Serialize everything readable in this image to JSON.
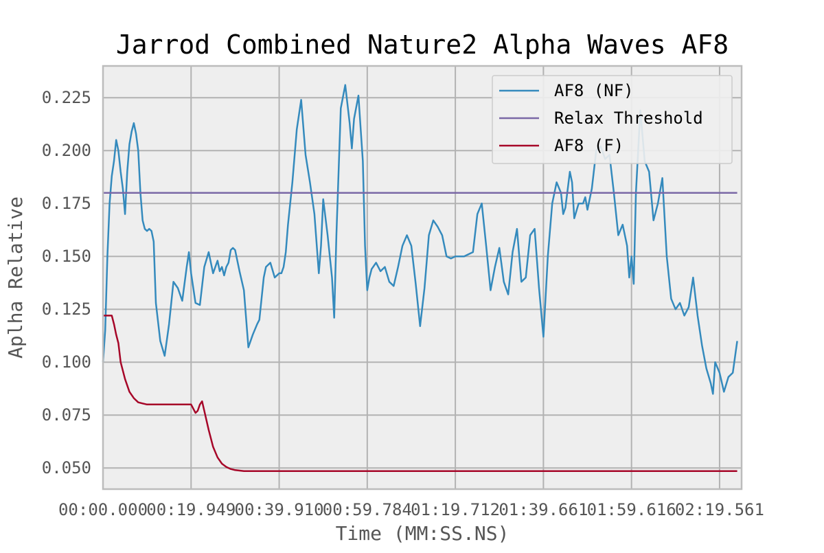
{
  "chart_data": {
    "type": "line",
    "title": "Jarrod Combined Nature2 Alpha Waves AF8",
    "xlabel": "Time (MM:SS.NS)",
    "ylabel": "Aplha Relative",
    "xlim": [
      0,
      145
    ],
    "ylim": [
      0.04,
      0.24
    ],
    "grid": true,
    "legend_position": "top-right",
    "x_ticks": [
      {
        "value": 0,
        "label": "00:00.000"
      },
      {
        "value": 20,
        "label": "00:19.949"
      },
      {
        "value": 40,
        "label": "00:39.910"
      },
      {
        "value": 60,
        "label": "00:59.784"
      },
      {
        "value": 80,
        "label": "01:19.712"
      },
      {
        "value": 100,
        "label": "01:39.661"
      },
      {
        "value": 120,
        "label": "01:59.616"
      },
      {
        "value": 140,
        "label": "02:19.561"
      }
    ],
    "y_ticks": [
      {
        "value": 0.05,
        "label": "0.050"
      },
      {
        "value": 0.075,
        "label": "0.075"
      },
      {
        "value": 0.1,
        "label": "0.100"
      },
      {
        "value": 0.125,
        "label": "0.125"
      },
      {
        "value": 0.15,
        "label": "0.150"
      },
      {
        "value": 0.175,
        "label": "0.175"
      },
      {
        "value": 0.2,
        "label": "0.200"
      },
      {
        "value": 0.225,
        "label": "0.225"
      }
    ],
    "series": [
      {
        "name": "AF8 (NF)",
        "color": "#348abd",
        "x": [
          0,
          0.5,
          1,
          1.5,
          2,
          2.5,
          3,
          3.5,
          4,
          4.5,
          5,
          5.5,
          6,
          6.5,
          7,
          7.5,
          8,
          8.5,
          9,
          9.5,
          10,
          10.5,
          11,
          11.5,
          12,
          13,
          14,
          15,
          16,
          17,
          18,
          19,
          19.5,
          20,
          20.5,
          21,
          22,
          23,
          24,
          25,
          26,
          26.5,
          27,
          27.5,
          28,
          28.5,
          29,
          29.5,
          30,
          30.5,
          31,
          32,
          33,
          34,
          35,
          35.5,
          36,
          36.5,
          37,
          38,
          39,
          40,
          40.5,
          41,
          41.5,
          42,
          43,
          44,
          45,
          46,
          47,
          48,
          49,
          49.5,
          50,
          51,
          52,
          52.5,
          53,
          54,
          55,
          56,
          56.5,
          57,
          58,
          59,
          59.5,
          60,
          60.5,
          61,
          62,
          63,
          64,
          65,
          66,
          67,
          68,
          69,
          70,
          71,
          72,
          73,
          74,
          75,
          76,
          77,
          78,
          79,
          80,
          81,
          82,
          83,
          84,
          85,
          86,
          87,
          88,
          89,
          90,
          91,
          92,
          93,
          94,
          95,
          96,
          97,
          98,
          99,
          100,
          101,
          102,
          103,
          104,
          104.5,
          105,
          106,
          106.5,
          107,
          108,
          109,
          109.5,
          110,
          111,
          112,
          113,
          114,
          115,
          116,
          117,
          118,
          119,
          119.5,
          120,
          120.5,
          121,
          122,
          123,
          124,
          125,
          126,
          127,
          128,
          129,
          130,
          131,
          132,
          133,
          134,
          135,
          136,
          137,
          138,
          138.5,
          139,
          140,
          141,
          142,
          143,
          144
        ],
        "values": [
          0.1,
          0.115,
          0.15,
          0.175,
          0.188,
          0.195,
          0.205,
          0.2,
          0.19,
          0.182,
          0.17,
          0.19,
          0.203,
          0.209,
          0.213,
          0.208,
          0.2,
          0.18,
          0.167,
          0.163,
          0.162,
          0.163,
          0.162,
          0.157,
          0.128,
          0.11,
          0.103,
          0.118,
          0.138,
          0.135,
          0.129,
          0.145,
          0.152,
          0.142,
          0.135,
          0.128,
          0.127,
          0.145,
          0.152,
          0.142,
          0.148,
          0.143,
          0.145,
          0.141,
          0.145,
          0.147,
          0.153,
          0.154,
          0.153,
          0.148,
          0.143,
          0.134,
          0.107,
          0.113,
          0.118,
          0.12,
          0.13,
          0.14,
          0.145,
          0.147,
          0.14,
          0.142,
          0.142,
          0.145,
          0.152,
          0.165,
          0.185,
          0.21,
          0.224,
          0.198,
          0.185,
          0.17,
          0.142,
          0.155,
          0.177,
          0.16,
          0.14,
          0.121,
          0.16,
          0.22,
          0.231,
          0.213,
          0.201,
          0.215,
          0.226,
          0.195,
          0.155,
          0.134,
          0.14,
          0.144,
          0.147,
          0.143,
          0.145,
          0.138,
          0.136,
          0.145,
          0.155,
          0.16,
          0.155,
          0.137,
          0.117,
          0.135,
          0.16,
          0.167,
          0.164,
          0.16,
          0.15,
          0.149,
          0.15,
          0.15,
          0.15,
          0.151,
          0.152,
          0.17,
          0.175,
          0.155,
          0.134,
          0.145,
          0.154,
          0.138,
          0.132,
          0.152,
          0.163,
          0.138,
          0.14,
          0.16,
          0.163,
          0.135,
          0.112,
          0.15,
          0.175,
          0.185,
          0.18,
          0.17,
          0.173,
          0.19,
          0.185,
          0.168,
          0.175,
          0.175,
          0.178,
          0.172,
          0.182,
          0.2,
          0.202,
          0.196,
          0.198,
          0.18,
          0.16,
          0.165,
          0.155,
          0.14,
          0.15,
          0.137,
          0.18,
          0.219,
          0.195,
          0.19,
          0.167,
          0.175,
          0.187,
          0.15,
          0.13,
          0.125,
          0.128,
          0.122,
          0.126,
          0.14,
          0.122,
          0.108,
          0.097,
          0.09,
          0.085,
          0.1,
          0.095,
          0.086,
          0.093,
          0.095,
          0.11
        ]
      },
      {
        "name": "Relax Threshold",
        "color": "#7a68a6",
        "x": [
          0,
          144
        ],
        "values": [
          0.18,
          0.18
        ]
      },
      {
        "name": "AF8 (F)",
        "color": "#a60628",
        "x": [
          0,
          1,
          2,
          2.5,
          3,
          3.5,
          4,
          5,
          6,
          7,
          8,
          9,
          10,
          12,
          14,
          16,
          18,
          20,
          21,
          21.5,
          22,
          22.5,
          23,
          24,
          25,
          26,
          27,
          28,
          29,
          30,
          32,
          34,
          36,
          40,
          50,
          60,
          80,
          100,
          120,
          144
        ],
        "values": [
          0.122,
          0.122,
          0.122,
          0.118,
          0.113,
          0.109,
          0.1,
          0.092,
          0.086,
          0.083,
          0.081,
          0.0805,
          0.08,
          0.08,
          0.08,
          0.08,
          0.08,
          0.08,
          0.076,
          0.077,
          0.08,
          0.0815,
          0.077,
          0.068,
          0.06,
          0.055,
          0.052,
          0.0505,
          0.0495,
          0.049,
          0.0485,
          0.0485,
          0.0485,
          0.0485,
          0.0485,
          0.0485,
          0.0485,
          0.0485,
          0.0485,
          0.0485
        ]
      }
    ]
  }
}
